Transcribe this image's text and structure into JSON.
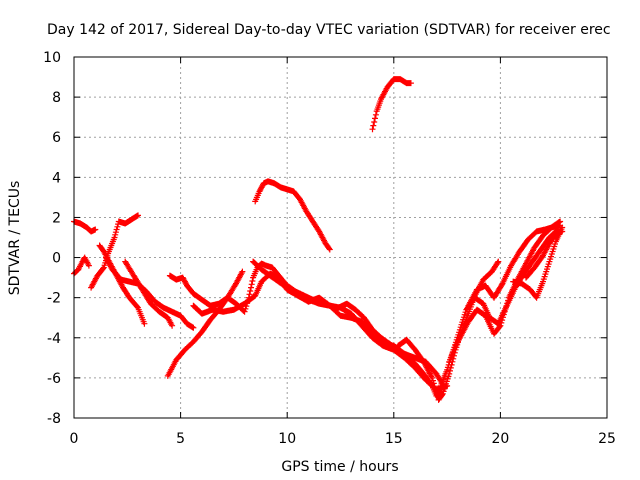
{
  "chart_data": {
    "type": "scatter",
    "title": "Day 142 of 2017, Sidereal Day-to-day VTEC variation (SDTVAR) for receiver erec",
    "xlabel": "GPS time / hours",
    "ylabel": "SDTVAR / TECUs",
    "xlim": [
      0,
      25
    ],
    "ylim": [
      -8,
      10
    ],
    "xticks": [
      0,
      5,
      10,
      15,
      20,
      25
    ],
    "xtick_labels": [
      "0",
      "5",
      "10",
      "15",
      "20",
      "25"
    ],
    "yticks": [
      -8,
      -6,
      -4,
      -2,
      0,
      2,
      4,
      6,
      8,
      10
    ],
    "ytick_labels": [
      "-8",
      "-6",
      "-4",
      "-2",
      "0",
      "2",
      "4",
      "6",
      "8",
      "10"
    ],
    "grid": true,
    "legend": "none",
    "marker": "plus",
    "color": "#ff0000",
    "series": [
      {
        "points": [
          [
            0.0,
            1.8
          ],
          [
            0.3,
            1.7
          ],
          [
            0.6,
            1.5
          ],
          [
            0.8,
            1.3
          ],
          [
            1.0,
            1.4
          ]
        ]
      },
      {
        "points": [
          [
            0.0,
            -0.8
          ],
          [
            0.2,
            -0.6
          ],
          [
            0.4,
            -0.2
          ],
          [
            0.5,
            0.0
          ],
          [
            0.7,
            -0.4
          ]
        ]
      },
      {
        "points": [
          [
            0.8,
            -1.5
          ],
          [
            1.1,
            -0.9
          ],
          [
            1.4,
            -0.5
          ],
          [
            1.6,
            0.2
          ],
          [
            1.9,
            1.0
          ],
          [
            2.1,
            1.8
          ],
          [
            2.4,
            1.7
          ],
          [
            2.7,
            1.9
          ],
          [
            3.0,
            2.1
          ]
        ]
      },
      {
        "points": [
          [
            1.2,
            0.6
          ],
          [
            1.4,
            0.3
          ],
          [
            1.7,
            -0.3
          ],
          [
            2.0,
            -0.9
          ],
          [
            2.3,
            -1.5
          ],
          [
            2.6,
            -2.0
          ],
          [
            3.0,
            -2.5
          ],
          [
            3.3,
            -3.3
          ]
        ]
      },
      {
        "points": [
          [
            1.5,
            0.0
          ],
          [
            1.8,
            -0.6
          ],
          [
            2.2,
            -1.1
          ],
          [
            2.6,
            -1.2
          ],
          [
            3.0,
            -1.3
          ],
          [
            3.4,
            -1.7
          ],
          [
            3.8,
            -2.2
          ],
          [
            4.2,
            -2.5
          ],
          [
            4.6,
            -2.7
          ],
          [
            5.0,
            -2.9
          ],
          [
            5.3,
            -3.3
          ],
          [
            5.6,
            -3.5
          ]
        ]
      },
      {
        "points": [
          [
            2.4,
            -0.2
          ],
          [
            2.8,
            -0.9
          ],
          [
            3.2,
            -1.6
          ],
          [
            3.6,
            -2.3
          ],
          [
            4.0,
            -2.7
          ],
          [
            4.4,
            -3.0
          ],
          [
            4.6,
            -3.4
          ]
        ]
      },
      {
        "points": [
          [
            4.4,
            -5.9
          ],
          [
            4.8,
            -5.1
          ],
          [
            5.2,
            -4.6
          ],
          [
            5.6,
            -4.2
          ],
          [
            6.0,
            -3.7
          ],
          [
            6.4,
            -3.1
          ],
          [
            6.8,
            -2.6
          ],
          [
            7.2,
            -2.0
          ],
          [
            7.6,
            -1.3
          ],
          [
            7.9,
            -0.7
          ]
        ]
      },
      {
        "points": [
          [
            4.5,
            -0.9
          ],
          [
            4.8,
            -1.1
          ],
          [
            5.1,
            -1.0
          ],
          [
            5.3,
            -1.4
          ],
          [
            5.6,
            -1.8
          ],
          [
            6.0,
            -2.1
          ],
          [
            6.4,
            -2.4
          ],
          [
            6.8,
            -2.3
          ],
          [
            7.2,
            -2.0
          ],
          [
            7.6,
            -2.3
          ],
          [
            8.0,
            -2.7
          ],
          [
            8.2,
            -2.0
          ],
          [
            8.4,
            -1.0
          ],
          [
            8.6,
            -0.5
          ],
          [
            8.8,
            -0.3
          ],
          [
            9.0,
            -0.4
          ],
          [
            9.3,
            -0.5
          ],
          [
            9.6,
            -0.9
          ],
          [
            10.0,
            -1.4
          ],
          [
            10.4,
            -1.7
          ],
          [
            10.8,
            -1.9
          ],
          [
            11.2,
            -2.1
          ],
          [
            11.6,
            -2.3
          ],
          [
            12.0,
            -2.4
          ],
          [
            12.4,
            -2.5
          ],
          [
            12.8,
            -2.3
          ],
          [
            13.2,
            -2.6
          ],
          [
            13.6,
            -3.0
          ],
          [
            14.0,
            -3.6
          ],
          [
            14.4,
            -4.0
          ],
          [
            14.8,
            -4.3
          ],
          [
            15.2,
            -4.6
          ],
          [
            15.6,
            -4.9
          ],
          [
            16.0,
            -5.3
          ],
          [
            16.4,
            -5.8
          ],
          [
            16.8,
            -6.4
          ],
          [
            17.0,
            -6.9
          ],
          [
            17.2,
            -6.7
          ]
        ]
      },
      {
        "points": [
          [
            5.6,
            -2.4
          ],
          [
            6.0,
            -2.8
          ],
          [
            6.5,
            -2.6
          ],
          [
            7.0,
            -2.7
          ],
          [
            7.5,
            -2.6
          ],
          [
            8.0,
            -2.3
          ],
          [
            8.5,
            -1.9
          ],
          [
            8.8,
            -1.2
          ],
          [
            9.2,
            -0.8
          ],
          [
            9.6,
            -1.0
          ],
          [
            10.0,
            -1.6
          ],
          [
            10.5,
            -1.9
          ],
          [
            11.0,
            -2.2
          ],
          [
            11.5,
            -2.0
          ],
          [
            12.0,
            -2.4
          ],
          [
            12.5,
            -2.5
          ],
          [
            13.0,
            -2.8
          ],
          [
            13.5,
            -3.4
          ],
          [
            14.0,
            -4.0
          ],
          [
            14.5,
            -4.4
          ],
          [
            15.0,
            -4.6
          ],
          [
            15.5,
            -5.0
          ],
          [
            16.0,
            -5.5
          ],
          [
            16.5,
            -6.1
          ],
          [
            17.0,
            -6.6
          ],
          [
            17.5,
            -6.4
          ]
        ]
      },
      {
        "points": [
          [
            8.4,
            -0.2
          ],
          [
            8.8,
            -0.6
          ],
          [
            9.2,
            -0.9
          ],
          [
            9.6,
            -1.2
          ],
          [
            10.0,
            -1.5
          ],
          [
            10.5,
            -1.8
          ],
          [
            11.0,
            -2.1
          ],
          [
            11.5,
            -2.3
          ],
          [
            12.0,
            -2.4
          ],
          [
            12.5,
            -2.9
          ],
          [
            13.0,
            -3.0
          ],
          [
            13.5,
            -3.2
          ],
          [
            14.0,
            -3.9
          ],
          [
            14.5,
            -4.3
          ],
          [
            15.0,
            -4.4
          ],
          [
            15.5,
            -4.8
          ],
          [
            16.0,
            -5.0
          ],
          [
            16.5,
            -5.2
          ],
          [
            17.0,
            -5.8
          ],
          [
            17.4,
            -6.5
          ]
        ]
      },
      {
        "points": [
          [
            8.5,
            2.8
          ],
          [
            8.7,
            3.3
          ],
          [
            8.9,
            3.7
          ],
          [
            9.1,
            3.8
          ],
          [
            9.4,
            3.7
          ],
          [
            9.7,
            3.5
          ],
          [
            10.0,
            3.4
          ],
          [
            10.3,
            3.3
          ],
          [
            10.6,
            2.9
          ],
          [
            10.9,
            2.3
          ],
          [
            11.2,
            1.8
          ],
          [
            11.5,
            1.3
          ],
          [
            11.8,
            0.7
          ],
          [
            12.0,
            0.4
          ]
        ]
      },
      {
        "points": [
          [
            14.0,
            6.4
          ],
          [
            14.2,
            7.3
          ],
          [
            14.4,
            7.9
          ],
          [
            14.7,
            8.5
          ],
          [
            15.0,
            8.9
          ],
          [
            15.3,
            8.9
          ],
          [
            15.6,
            8.7
          ],
          [
            15.8,
            8.7
          ]
        ]
      },
      {
        "points": [
          [
            15.2,
            -4.4
          ],
          [
            15.6,
            -4.1
          ],
          [
            16.0,
            -4.6
          ],
          [
            16.4,
            -5.2
          ],
          [
            16.8,
            -6.0
          ],
          [
            17.1,
            -7.1
          ],
          [
            17.3,
            -6.8
          ],
          [
            17.6,
            -5.8
          ],
          [
            17.9,
            -4.6
          ],
          [
            18.2,
            -3.6
          ],
          [
            18.5,
            -2.8
          ],
          [
            18.8,
            -1.9
          ],
          [
            19.2,
            -1.1
          ],
          [
            19.6,
            -0.7
          ],
          [
            19.9,
            -0.2
          ]
        ]
      },
      {
        "points": [
          [
            17.2,
            -6.4
          ],
          [
            17.5,
            -5.6
          ],
          [
            17.8,
            -4.6
          ],
          [
            18.1,
            -3.6
          ],
          [
            18.4,
            -2.6
          ],
          [
            18.8,
            -2.0
          ],
          [
            19.2,
            -2.3
          ],
          [
            19.5,
            -3.0
          ],
          [
            19.9,
            -3.3
          ],
          [
            20.3,
            -2.4
          ],
          [
            20.7,
            -1.5
          ],
          [
            21.1,
            -0.8
          ],
          [
            21.5,
            -0.2
          ],
          [
            21.9,
            0.4
          ],
          [
            22.3,
            1.0
          ],
          [
            22.7,
            1.4
          ]
        ]
      },
      {
        "points": [
          [
            17.6,
            -5.2
          ],
          [
            17.9,
            -4.4
          ],
          [
            18.2,
            -3.8
          ],
          [
            18.5,
            -3.2
          ],
          [
            18.9,
            -2.6
          ],
          [
            19.3,
            -2.9
          ],
          [
            19.7,
            -3.8
          ],
          [
            20.0,
            -3.4
          ],
          [
            20.4,
            -2.0
          ],
          [
            20.8,
            -1.1
          ],
          [
            21.2,
            -0.3
          ],
          [
            21.6,
            0.5
          ],
          [
            22.0,
            1.1
          ],
          [
            22.4,
            1.5
          ],
          [
            22.8,
            1.6
          ]
        ]
      },
      {
        "points": [
          [
            18.5,
            -2.4
          ],
          [
            18.9,
            -1.6
          ],
          [
            19.3,
            -1.4
          ],
          [
            19.7,
            -2.0
          ],
          [
            20.1,
            -1.3
          ],
          [
            20.5,
            -0.4
          ],
          [
            20.9,
            0.3
          ],
          [
            21.3,
            0.9
          ],
          [
            21.7,
            1.3
          ],
          [
            22.1,
            1.4
          ],
          [
            22.4,
            1.5
          ],
          [
            22.8,
            1.8
          ]
        ]
      },
      {
        "points": [
          [
            20.6,
            -1.2
          ],
          [
            21.0,
            -1.3
          ],
          [
            21.4,
            -1.6
          ],
          [
            21.7,
            -2.0
          ],
          [
            22.0,
            -1.2
          ],
          [
            22.3,
            -0.2
          ],
          [
            22.6,
            0.8
          ],
          [
            22.9,
            1.5
          ]
        ]
      },
      {
        "points": [
          [
            21.2,
            -1.0
          ],
          [
            21.6,
            -0.5
          ],
          [
            22.0,
            0.1
          ],
          [
            22.3,
            0.7
          ],
          [
            22.6,
            1.2
          ],
          [
            22.9,
            1.3
          ]
        ]
      }
    ]
  }
}
